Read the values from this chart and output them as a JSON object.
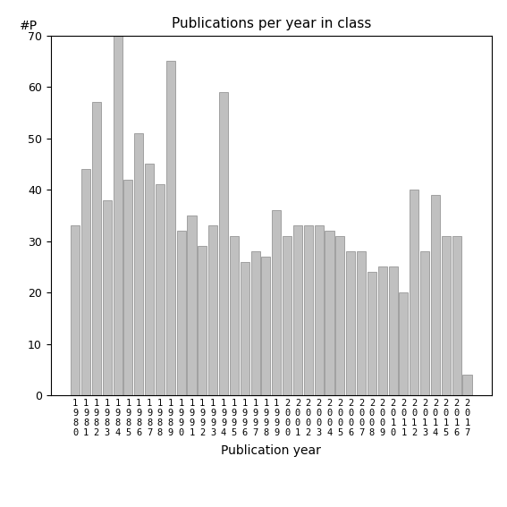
{
  "title": "Publications per year in class",
  "xlabel": "Publication year",
  "ylabel": "#P",
  "years": [
    "1980",
    "1981",
    "1982",
    "1983",
    "1984",
    "1985",
    "1986",
    "1987",
    "1988",
    "1989",
    "1990",
    "1991",
    "1992",
    "1993",
    "1994",
    "1995",
    "1996",
    "1997",
    "1998",
    "1999",
    "2000",
    "2001",
    "2002",
    "2003",
    "2004",
    "2005",
    "2006",
    "2007",
    "2008",
    "2009",
    "2010",
    "2011",
    "2012",
    "2013",
    "2014",
    "2015",
    "2016",
    "2017"
  ],
  "values": [
    33,
    44,
    57,
    38,
    70,
    42,
    51,
    45,
    41,
    65,
    32,
    35,
    29,
    33,
    59,
    31,
    26,
    28,
    27,
    36,
    31,
    33,
    33,
    33,
    32,
    31,
    28,
    28,
    24,
    25,
    25,
    20,
    40,
    28,
    39,
    31,
    31,
    4
  ],
  "bar_color": "#c0c0c0",
  "bar_edgecolor": "#888888",
  "ylim": [
    0,
    70
  ],
  "yticks": [
    0,
    10,
    20,
    30,
    40,
    50,
    60,
    70
  ],
  "background_color": "#ffffff",
  "title_fontsize": 11,
  "axis_label_fontsize": 10,
  "tick_fontsize": 9,
  "xtick_fontsize": 7.5
}
